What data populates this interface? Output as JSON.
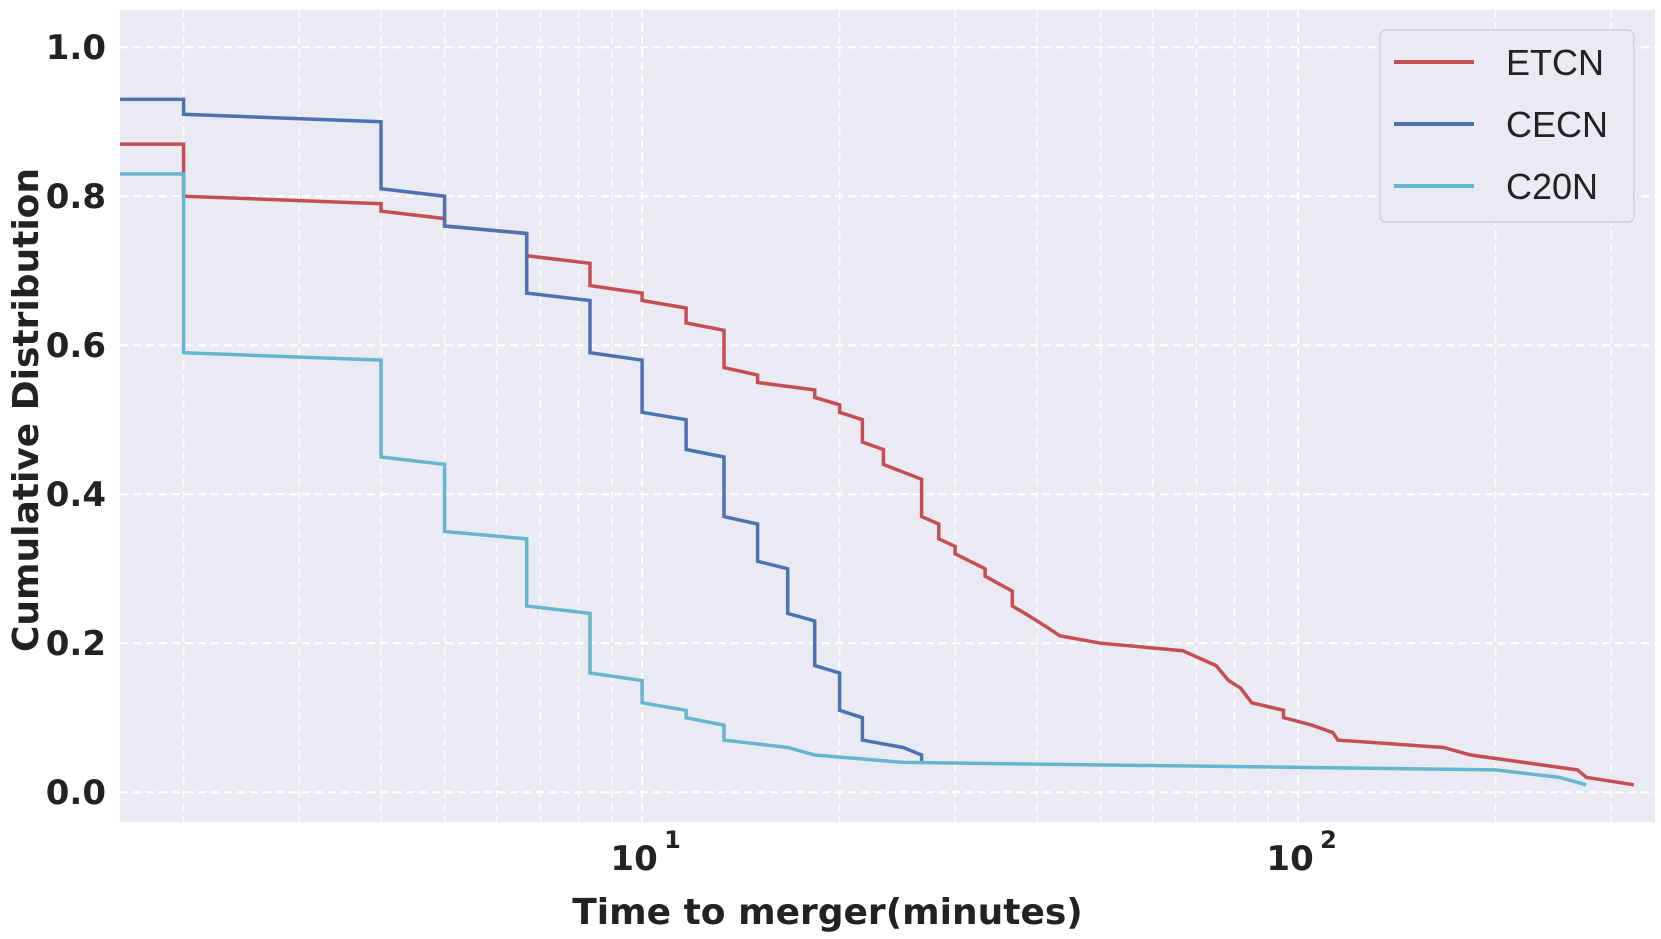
{
  "chart_data": {
    "type": "line",
    "step": true,
    "xlabel": "Time to merger(minutes)",
    "ylabel": "Cumulative Distribution",
    "xscale": "log",
    "xlim": [
      1.6,
      350
    ],
    "ylim": [
      -0.04,
      1.05
    ],
    "x_ticks": [
      {
        "value": 10,
        "base": "10",
        "exp": "1"
      },
      {
        "value": 100,
        "base": "10",
        "exp": "2"
      }
    ],
    "y_ticks": [
      {
        "value": 0.0,
        "label": "0.0"
      },
      {
        "value": 0.2,
        "label": "0.2"
      },
      {
        "value": 0.4,
        "label": "0.4"
      },
      {
        "value": 0.6,
        "label": "0.6"
      },
      {
        "value": 0.8,
        "label": "0.8"
      },
      {
        "value": 1.0,
        "label": "1.0"
      }
    ],
    "grid": true,
    "legend_position": "top-right",
    "series": [
      {
        "name": "ETCN",
        "color": "#c44e52",
        "points": [
          [
            1.6,
            0.87
          ],
          [
            2.0,
            0.87
          ],
          [
            2.0,
            0.8
          ],
          [
            4.0,
            0.79
          ],
          [
            4.0,
            0.78
          ],
          [
            5.0,
            0.77
          ],
          [
            5.0,
            0.76
          ],
          [
            6.67,
            0.75
          ],
          [
            6.67,
            0.72
          ],
          [
            8.33,
            0.71
          ],
          [
            8.33,
            0.68
          ],
          [
            10,
            0.67
          ],
          [
            10,
            0.66
          ],
          [
            11.67,
            0.65
          ],
          [
            11.67,
            0.63
          ],
          [
            13.33,
            0.62
          ],
          [
            13.33,
            0.57
          ],
          [
            15,
            0.56
          ],
          [
            15,
            0.55
          ],
          [
            18.33,
            0.54
          ],
          [
            18.33,
            0.53
          ],
          [
            20,
            0.52
          ],
          [
            20,
            0.51
          ],
          [
            21.67,
            0.5
          ],
          [
            21.67,
            0.47
          ],
          [
            23.33,
            0.46
          ],
          [
            23.33,
            0.44
          ],
          [
            26.67,
            0.42
          ],
          [
            26.67,
            0.37
          ],
          [
            28.33,
            0.36
          ],
          [
            28.33,
            0.34
          ],
          [
            30,
            0.33
          ],
          [
            30,
            0.32
          ],
          [
            33.33,
            0.3
          ],
          [
            33.33,
            0.29
          ],
          [
            36.67,
            0.27
          ],
          [
            36.67,
            0.25
          ],
          [
            38.33,
            0.24
          ],
          [
            38.33,
            0.24
          ],
          [
            41.67,
            0.22
          ],
          [
            43.33,
            0.21
          ],
          [
            50,
            0.2
          ],
          [
            66.67,
            0.19
          ],
          [
            75,
            0.17
          ],
          [
            78.33,
            0.15
          ],
          [
            81.67,
            0.14
          ],
          [
            83.33,
            0.13
          ],
          [
            85,
            0.12
          ],
          [
            95,
            0.11
          ],
          [
            95,
            0.1
          ],
          [
            100,
            0.095
          ],
          [
            105,
            0.09
          ],
          [
            113,
            0.08
          ],
          [
            115,
            0.07
          ],
          [
            166.67,
            0.06
          ],
          [
            183.33,
            0.05
          ],
          [
            266.67,
            0.03
          ],
          [
            275,
            0.02
          ],
          [
            325,
            0.01
          ]
        ]
      },
      {
        "name": "CECN",
        "color": "#4c72b0",
        "points": [
          [
            1.6,
            0.93
          ],
          [
            2.0,
            0.93
          ],
          [
            2.0,
            0.91
          ],
          [
            4.0,
            0.9
          ],
          [
            4.0,
            0.81
          ],
          [
            5.0,
            0.8
          ],
          [
            5.0,
            0.76
          ],
          [
            6.67,
            0.75
          ],
          [
            6.67,
            0.67
          ],
          [
            8.33,
            0.66
          ],
          [
            8.33,
            0.59
          ],
          [
            10,
            0.58
          ],
          [
            10,
            0.51
          ],
          [
            11.67,
            0.5
          ],
          [
            11.67,
            0.46
          ],
          [
            13.33,
            0.45
          ],
          [
            13.33,
            0.37
          ],
          [
            15,
            0.36
          ],
          [
            15,
            0.31
          ],
          [
            16.67,
            0.3
          ],
          [
            16.67,
            0.24
          ],
          [
            18.33,
            0.23
          ],
          [
            18.33,
            0.17
          ],
          [
            20,
            0.16
          ],
          [
            20,
            0.11
          ],
          [
            21.67,
            0.1
          ],
          [
            21.67,
            0.07
          ],
          [
            25,
            0.06
          ],
          [
            26.67,
            0.05
          ],
          [
            26.67,
            0.04
          ]
        ]
      },
      {
        "name": "C20N",
        "color": "#64b5cd",
        "points": [
          [
            1.6,
            0.83
          ],
          [
            2.0,
            0.83
          ],
          [
            2.0,
            0.59
          ],
          [
            4.0,
            0.58
          ],
          [
            4.0,
            0.45
          ],
          [
            5.0,
            0.44
          ],
          [
            5.0,
            0.35
          ],
          [
            6.67,
            0.34
          ],
          [
            6.67,
            0.25
          ],
          [
            8.33,
            0.24
          ],
          [
            8.33,
            0.16
          ],
          [
            10,
            0.15
          ],
          [
            10,
            0.12
          ],
          [
            11.67,
            0.11
          ],
          [
            11.67,
            0.1
          ],
          [
            13.33,
            0.09
          ],
          [
            13.33,
            0.07
          ],
          [
            16.67,
            0.06
          ],
          [
            18.33,
            0.05
          ],
          [
            25,
            0.04
          ],
          [
            200,
            0.03
          ],
          [
            250,
            0.02
          ],
          [
            275,
            0.01
          ]
        ]
      }
    ]
  }
}
